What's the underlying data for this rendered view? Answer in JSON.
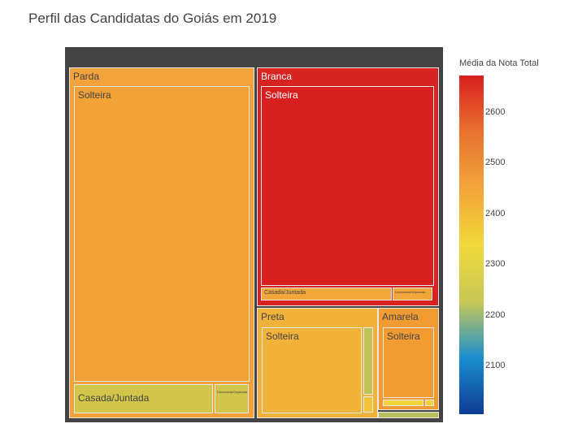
{
  "title": "Perfil das Candidatas do Goiás em 2019",
  "chart_data": {
    "type": "treemap",
    "title": "Perfil das Candidatas do Goiás em 2019",
    "color_metric": "Média da Nota Total",
    "colorscale": [
      "#0d3b94",
      "#1a8fd0",
      "#c8c855",
      "#f0d83a",
      "#f3a53a",
      "#e8722f",
      "#da1f1f"
    ],
    "color_range": [
      2000,
      2680
    ],
    "colorbar_ticks": [
      "2600",
      "2500",
      "2400",
      "2300",
      "2200",
      "2100"
    ],
    "nodes": [
      {
        "id": "parda",
        "label": "Parda",
        "parent": "",
        "color": "#f2a23a"
      },
      {
        "id": "parda-solteira",
        "label": "Solteira",
        "parent": "parda",
        "color": "#f1a237"
      },
      {
        "id": "parda-casada",
        "label": "Casada/Juntada",
        "parent": "parda",
        "color": "#d2c64a"
      },
      {
        "id": "parda-divorciada",
        "label": "Divorciada/Separada",
        "parent": "parda",
        "color": "#d2c64a"
      },
      {
        "id": "branca",
        "label": "Branca",
        "parent": "",
        "color": "#d82323"
      },
      {
        "id": "branca-solteira",
        "label": "Solteira",
        "parent": "branca",
        "color": "#d81f20"
      },
      {
        "id": "branca-casada",
        "label": "Casada/Juntada",
        "parent": "branca",
        "color": "#f1a63a"
      },
      {
        "id": "branca-divorciada",
        "label": "Divorciada/Separada",
        "parent": "branca",
        "color": "#f1a63a"
      },
      {
        "id": "preta",
        "label": "Preta",
        "parent": "",
        "color": "#f1b23a"
      },
      {
        "id": "preta-solteira",
        "label": "Solteira",
        "parent": "preta",
        "color": "#f2b23a"
      },
      {
        "id": "preta-sub1",
        "label": "",
        "parent": "preta",
        "color": "#bfc35a"
      },
      {
        "id": "preta-sub2",
        "label": "",
        "parent": "preta",
        "color": "#f0c43a"
      },
      {
        "id": "amarela",
        "label": "Amarela",
        "parent": "",
        "color": "#f19c33"
      },
      {
        "id": "amarela-solteira",
        "label": "Solteira",
        "parent": "amarela",
        "color": "#f19c33"
      },
      {
        "id": "amarela-sub1",
        "label": "",
        "parent": "amarela",
        "color": "#f0d33a"
      },
      {
        "id": "amarela-sub2",
        "label": "",
        "parent": "amarela",
        "color": "#f0d33a"
      },
      {
        "id": "other-sub",
        "label": "",
        "parent": "",
        "color": "#b9c15e"
      }
    ]
  }
}
